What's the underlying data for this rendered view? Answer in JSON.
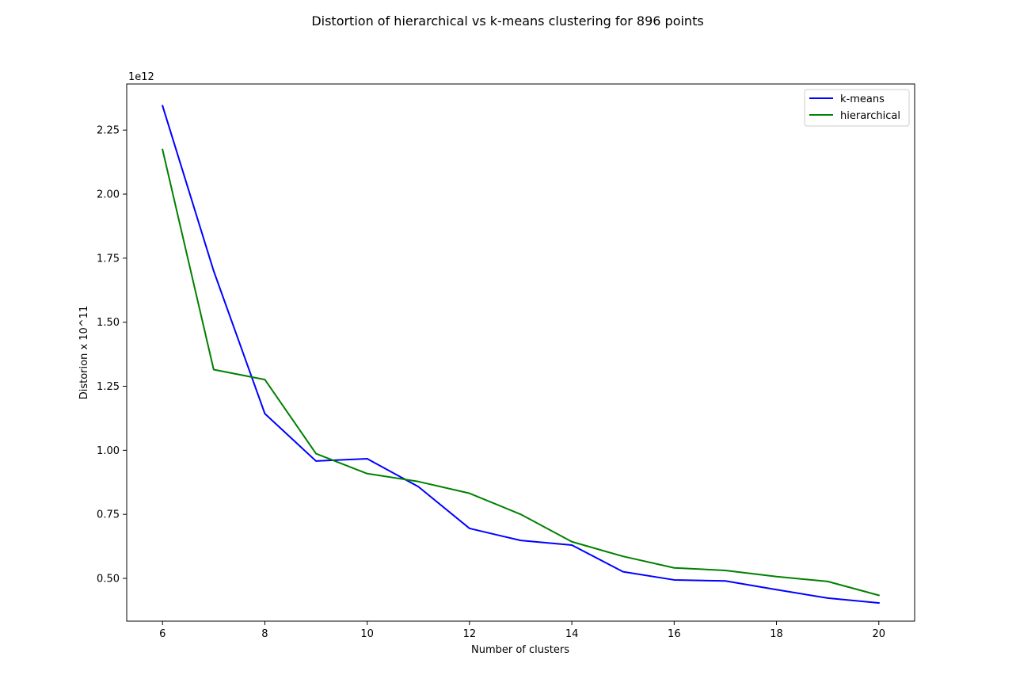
{
  "chart_data": {
    "type": "line",
    "title": "Distortion of hierarchical vs k-means clustering for 896 points",
    "xlabel": "Number of clusters",
    "ylabel": "Distorion x 10^11",
    "offset_text": "1e12",
    "x": [
      6,
      7,
      8,
      9,
      10,
      11,
      12,
      13,
      14,
      15,
      16,
      17,
      18,
      19,
      20
    ],
    "xlim": [
      5.3,
      20.7
    ],
    "ylim": [
      0.333,
      2.43
    ],
    "xticks": [
      6,
      8,
      10,
      12,
      14,
      16,
      18,
      20
    ],
    "yticks": [
      0.5,
      0.75,
      1.0,
      1.25,
      1.5,
      1.75,
      2.0,
      2.25
    ],
    "ytick_labels": [
      "0.50",
      "0.75",
      "1.00",
      "1.25",
      "1.50",
      "1.75",
      "2.00",
      "2.25"
    ],
    "grid": false,
    "legend_position": "top-right",
    "series": [
      {
        "name": "k-means",
        "color": "#0000ff",
        "values": [
          2.345,
          1.7,
          1.143,
          0.958,
          0.967,
          0.858,
          0.695,
          0.648,
          0.63,
          0.526,
          0.494,
          0.49,
          0.456,
          0.423,
          0.404
        ]
      },
      {
        "name": "hierarchical",
        "color": "#008000",
        "values": [
          2.174,
          1.315,
          1.276,
          0.987,
          0.909,
          0.878,
          0.832,
          0.75,
          0.643,
          0.586,
          0.541,
          0.531,
          0.507,
          0.488,
          0.434
        ]
      }
    ]
  }
}
